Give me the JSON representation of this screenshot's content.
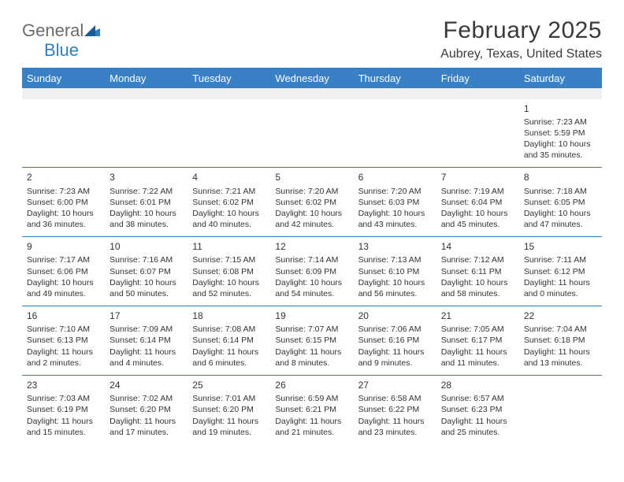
{
  "brand": {
    "name1": "General",
    "name2": "Blue"
  },
  "title": "February 2025",
  "location": "Aubrey, Texas, United States",
  "colors": {
    "header_bg": "#3a80c4",
    "header_border": "#2f7fc1",
    "brand_blue": "#2f7fc1",
    "text": "#333333",
    "blank_row_bg": "#f0f0f0"
  },
  "weekdays": [
    "Sunday",
    "Monday",
    "Tuesday",
    "Wednesday",
    "Thursday",
    "Friday",
    "Saturday"
  ],
  "weeks": [
    [
      null,
      null,
      null,
      null,
      null,
      null,
      {
        "n": "1",
        "sunrise": "Sunrise: 7:23 AM",
        "sunset": "Sunset: 5:59 PM",
        "daylight": "Daylight: 10 hours and 35 minutes."
      }
    ],
    [
      {
        "n": "2",
        "sunrise": "Sunrise: 7:23 AM",
        "sunset": "Sunset: 6:00 PM",
        "daylight": "Daylight: 10 hours and 36 minutes."
      },
      {
        "n": "3",
        "sunrise": "Sunrise: 7:22 AM",
        "sunset": "Sunset: 6:01 PM",
        "daylight": "Daylight: 10 hours and 38 minutes."
      },
      {
        "n": "4",
        "sunrise": "Sunrise: 7:21 AM",
        "sunset": "Sunset: 6:02 PM",
        "daylight": "Daylight: 10 hours and 40 minutes."
      },
      {
        "n": "5",
        "sunrise": "Sunrise: 7:20 AM",
        "sunset": "Sunset: 6:02 PM",
        "daylight": "Daylight: 10 hours and 42 minutes."
      },
      {
        "n": "6",
        "sunrise": "Sunrise: 7:20 AM",
        "sunset": "Sunset: 6:03 PM",
        "daylight": "Daylight: 10 hours and 43 minutes."
      },
      {
        "n": "7",
        "sunrise": "Sunrise: 7:19 AM",
        "sunset": "Sunset: 6:04 PM",
        "daylight": "Daylight: 10 hours and 45 minutes."
      },
      {
        "n": "8",
        "sunrise": "Sunrise: 7:18 AM",
        "sunset": "Sunset: 6:05 PM",
        "daylight": "Daylight: 10 hours and 47 minutes."
      }
    ],
    [
      {
        "n": "9",
        "sunrise": "Sunrise: 7:17 AM",
        "sunset": "Sunset: 6:06 PM",
        "daylight": "Daylight: 10 hours and 49 minutes."
      },
      {
        "n": "10",
        "sunrise": "Sunrise: 7:16 AM",
        "sunset": "Sunset: 6:07 PM",
        "daylight": "Daylight: 10 hours and 50 minutes."
      },
      {
        "n": "11",
        "sunrise": "Sunrise: 7:15 AM",
        "sunset": "Sunset: 6:08 PM",
        "daylight": "Daylight: 10 hours and 52 minutes."
      },
      {
        "n": "12",
        "sunrise": "Sunrise: 7:14 AM",
        "sunset": "Sunset: 6:09 PM",
        "daylight": "Daylight: 10 hours and 54 minutes."
      },
      {
        "n": "13",
        "sunrise": "Sunrise: 7:13 AM",
        "sunset": "Sunset: 6:10 PM",
        "daylight": "Daylight: 10 hours and 56 minutes."
      },
      {
        "n": "14",
        "sunrise": "Sunrise: 7:12 AM",
        "sunset": "Sunset: 6:11 PM",
        "daylight": "Daylight: 10 hours and 58 minutes."
      },
      {
        "n": "15",
        "sunrise": "Sunrise: 7:11 AM",
        "sunset": "Sunset: 6:12 PM",
        "daylight": "Daylight: 11 hours and 0 minutes."
      }
    ],
    [
      {
        "n": "16",
        "sunrise": "Sunrise: 7:10 AM",
        "sunset": "Sunset: 6:13 PM",
        "daylight": "Daylight: 11 hours and 2 minutes."
      },
      {
        "n": "17",
        "sunrise": "Sunrise: 7:09 AM",
        "sunset": "Sunset: 6:14 PM",
        "daylight": "Daylight: 11 hours and 4 minutes."
      },
      {
        "n": "18",
        "sunrise": "Sunrise: 7:08 AM",
        "sunset": "Sunset: 6:14 PM",
        "daylight": "Daylight: 11 hours and 6 minutes."
      },
      {
        "n": "19",
        "sunrise": "Sunrise: 7:07 AM",
        "sunset": "Sunset: 6:15 PM",
        "daylight": "Daylight: 11 hours and 8 minutes."
      },
      {
        "n": "20",
        "sunrise": "Sunrise: 7:06 AM",
        "sunset": "Sunset: 6:16 PM",
        "daylight": "Daylight: 11 hours and 9 minutes."
      },
      {
        "n": "21",
        "sunrise": "Sunrise: 7:05 AM",
        "sunset": "Sunset: 6:17 PM",
        "daylight": "Daylight: 11 hours and 11 minutes."
      },
      {
        "n": "22",
        "sunrise": "Sunrise: 7:04 AM",
        "sunset": "Sunset: 6:18 PM",
        "daylight": "Daylight: 11 hours and 13 minutes."
      }
    ],
    [
      {
        "n": "23",
        "sunrise": "Sunrise: 7:03 AM",
        "sunset": "Sunset: 6:19 PM",
        "daylight": "Daylight: 11 hours and 15 minutes."
      },
      {
        "n": "24",
        "sunrise": "Sunrise: 7:02 AM",
        "sunset": "Sunset: 6:20 PM",
        "daylight": "Daylight: 11 hours and 17 minutes."
      },
      {
        "n": "25",
        "sunrise": "Sunrise: 7:01 AM",
        "sunset": "Sunset: 6:20 PM",
        "daylight": "Daylight: 11 hours and 19 minutes."
      },
      {
        "n": "26",
        "sunrise": "Sunrise: 6:59 AM",
        "sunset": "Sunset: 6:21 PM",
        "daylight": "Daylight: 11 hours and 21 minutes."
      },
      {
        "n": "27",
        "sunrise": "Sunrise: 6:58 AM",
        "sunset": "Sunset: 6:22 PM",
        "daylight": "Daylight: 11 hours and 23 minutes."
      },
      {
        "n": "28",
        "sunrise": "Sunrise: 6:57 AM",
        "sunset": "Sunset: 6:23 PM",
        "daylight": "Daylight: 11 hours and 25 minutes."
      },
      null
    ]
  ]
}
